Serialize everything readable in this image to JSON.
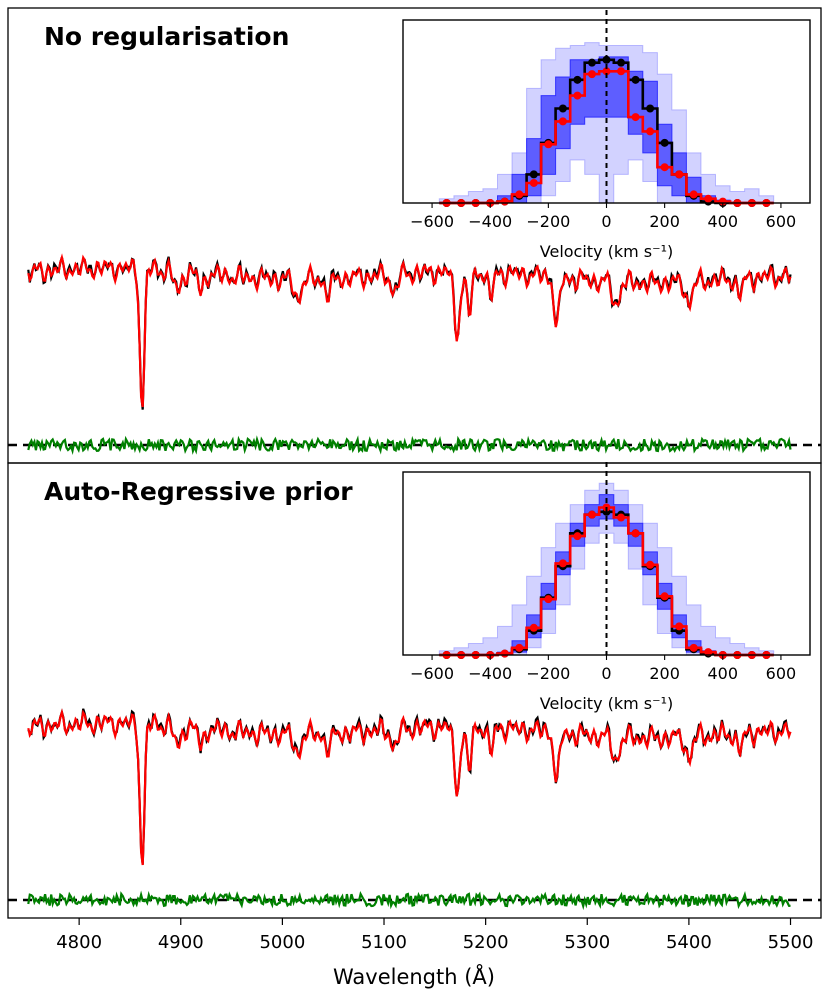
{
  "chart_data": [
    {
      "type": "line",
      "title": "No regularisation",
      "xlabel": "Wavelength (Å)",
      "xlim": [
        4730,
        5530
      ],
      "xticks": [
        4800,
        4900,
        5000,
        5100,
        5200,
        5300,
        5400,
        5500
      ],
      "y_ticks_shown": false,
      "series": [
        {
          "role": "data",
          "color": "#000000"
        },
        {
          "role": "model",
          "color": "#ff0000"
        },
        {
          "role": "residuals",
          "color": "#008000"
        }
      ],
      "absorption_features": [
        {
          "x": 4862,
          "depth": "strong"
        },
        {
          "x": 5172,
          "depth": "medium"
        },
        {
          "x": 5270,
          "depth": "medium"
        }
      ],
      "zero_line": {
        "style": "dashed",
        "color": "#000000"
      },
      "inset": {
        "type": "area",
        "xlabel": "Velocity (km s⁻¹)",
        "xlim": [
          -700,
          700
        ],
        "xticks": [
          -600,
          -400,
          -200,
          0,
          200,
          400,
          600
        ],
        "velocity_bins": [
          -550,
          -500,
          -450,
          -400,
          -350,
          -300,
          -250,
          -200,
          -150,
          -100,
          -50,
          0,
          50,
          100,
          150,
          200,
          250,
          300,
          350,
          400,
          450,
          500,
          550
        ],
        "true_losvd": [
          0,
          0,
          0,
          0,
          0.01,
          0.05,
          0.2,
          0.42,
          0.66,
          0.86,
          0.98,
          1.0,
          0.98,
          0.86,
          0.66,
          0.42,
          0.2,
          0.05,
          0.01,
          0,
          0,
          0,
          0
        ],
        "recovered_losvd": [
          0,
          0,
          0,
          0,
          0.01,
          0.06,
          0.14,
          0.41,
          0.57,
          0.75,
          0.9,
          0.92,
          0.92,
          0.6,
          0.5,
          0.25,
          0.2,
          0.06,
          0.03,
          0.01,
          0,
          0,
          0
        ],
        "band_inner": [
          [
            0,
            0
          ],
          [
            0,
            0
          ],
          [
            0,
            0
          ],
          [
            0,
            0
          ],
          [
            0,
            0.05
          ],
          [
            0,
            0.2
          ],
          [
            0.05,
            0.45
          ],
          [
            0.2,
            0.75
          ],
          [
            0.38,
            0.88
          ],
          [
            0.55,
            1.0
          ],
          [
            0.6,
            1.0
          ],
          [
            0.6,
            1.02
          ],
          [
            0.6,
            1.02
          ],
          [
            0.48,
            0.92
          ],
          [
            0.35,
            0.85
          ],
          [
            0.12,
            0.55
          ],
          [
            0.05,
            0.35
          ],
          [
            0,
            0.18
          ],
          [
            0,
            0.05
          ],
          [
            0,
            0.02
          ],
          [
            0,
            0
          ],
          [
            0,
            0
          ],
          [
            0,
            0
          ]
        ],
        "band_outer": [
          [
            0,
            0.03
          ],
          [
            0,
            0.05
          ],
          [
            0,
            0.08
          ],
          [
            0,
            0.1
          ],
          [
            0,
            0.2
          ],
          [
            0,
            0.35
          ],
          [
            0,
            0.8
          ],
          [
            0.05,
            1.0
          ],
          [
            0.15,
            1.08
          ],
          [
            0.3,
            1.1
          ],
          [
            0.2,
            1.12
          ],
          [
            0,
            1.1
          ],
          [
            0.2,
            1.1
          ],
          [
            0.3,
            1.1
          ],
          [
            0.15,
            1.05
          ],
          [
            0,
            0.9
          ],
          [
            0,
            0.65
          ],
          [
            0,
            0.35
          ],
          [
            0,
            0.2
          ],
          [
            0,
            0.12
          ],
          [
            0,
            0.08
          ],
          [
            0,
            0.1
          ],
          [
            0,
            0.05
          ]
        ],
        "vline": {
          "x": 0,
          "style": "dashed"
        }
      }
    },
    {
      "type": "line",
      "title": "Auto-Regressive prior",
      "xlabel": "Wavelength (Å)",
      "xlim": [
        4730,
        5530
      ],
      "xticks": [
        4800,
        4900,
        5000,
        5100,
        5200,
        5300,
        5400,
        5500
      ],
      "y_ticks_shown": false,
      "series": [
        {
          "role": "data",
          "color": "#000000"
        },
        {
          "role": "model",
          "color": "#ff0000"
        },
        {
          "role": "residuals",
          "color": "#008000"
        }
      ],
      "absorption_features": [
        {
          "x": 4862,
          "depth": "strong"
        },
        {
          "x": 5172,
          "depth": "medium"
        },
        {
          "x": 5270,
          "depth": "medium"
        }
      ],
      "zero_line": {
        "style": "dashed",
        "color": "#000000"
      },
      "inset": {
        "type": "area",
        "xlabel": "Velocity (km s⁻¹)",
        "xlim": [
          -700,
          700
        ],
        "xticks": [
          -600,
          -400,
          -200,
          0,
          200,
          400,
          600
        ],
        "velocity_bins": [
          -550,
          -500,
          -450,
          -400,
          -350,
          -300,
          -250,
          -200,
          -150,
          -100,
          -50,
          0,
          50,
          100,
          150,
          200,
          250,
          300,
          350,
          400,
          450,
          500,
          550
        ],
        "true_losvd": [
          0,
          0,
          0,
          0,
          0.01,
          0.04,
          0.17,
          0.4,
          0.62,
          0.85,
          0.98,
          1.0,
          0.98,
          0.85,
          0.62,
          0.4,
          0.17,
          0.04,
          0.01,
          0,
          0,
          0,
          0
        ],
        "recovered_losvd": [
          0,
          0,
          0,
          0,
          0.01,
          0.05,
          0.19,
          0.39,
          0.64,
          0.83,
          0.98,
          1.03,
          0.96,
          0.85,
          0.63,
          0.41,
          0.2,
          0.05,
          0.02,
          0,
          0,
          0,
          0
        ],
        "band_inner": [
          [
            0,
            0
          ],
          [
            0,
            0
          ],
          [
            0,
            0
          ],
          [
            0,
            0
          ],
          [
            0,
            0.02
          ],
          [
            0.02,
            0.1
          ],
          [
            0.12,
            0.28
          ],
          [
            0.32,
            0.5
          ],
          [
            0.56,
            0.72
          ],
          [
            0.76,
            0.92
          ],
          [
            0.9,
            1.05
          ],
          [
            0.95,
            1.12
          ],
          [
            0.9,
            1.05
          ],
          [
            0.76,
            0.92
          ],
          [
            0.56,
            0.72
          ],
          [
            0.32,
            0.5
          ],
          [
            0.12,
            0.28
          ],
          [
            0.02,
            0.1
          ],
          [
            0,
            0.03
          ],
          [
            0,
            0
          ],
          [
            0,
            0
          ],
          [
            0,
            0
          ],
          [
            0,
            0
          ]
        ],
        "band_outer": [
          [
            0,
            0.03
          ],
          [
            0,
            0.05
          ],
          [
            0,
            0.08
          ],
          [
            0,
            0.12
          ],
          [
            0,
            0.2
          ],
          [
            0,
            0.35
          ],
          [
            0.05,
            0.55
          ],
          [
            0.15,
            0.75
          ],
          [
            0.35,
            0.92
          ],
          [
            0.6,
            1.05
          ],
          [
            0.78,
            1.15
          ],
          [
            0.85,
            1.2
          ],
          [
            0.78,
            1.15
          ],
          [
            0.6,
            1.05
          ],
          [
            0.35,
            0.92
          ],
          [
            0.15,
            0.75
          ],
          [
            0.05,
            0.55
          ],
          [
            0,
            0.35
          ],
          [
            0,
            0.2
          ],
          [
            0,
            0.12
          ],
          [
            0,
            0.08
          ],
          [
            0,
            0.05
          ],
          [
            0,
            0.03
          ]
        ],
        "vline": {
          "x": 0,
          "style": "dashed"
        }
      }
    }
  ]
}
